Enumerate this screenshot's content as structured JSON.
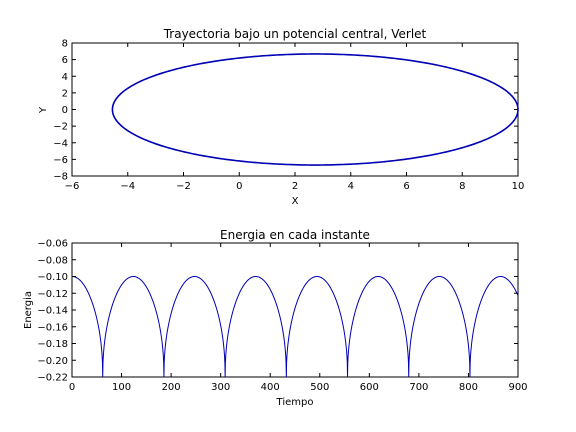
{
  "chart_data": [
    {
      "type": "line",
      "title": "Trayectoria bajo un potencial central, Verlet",
      "xlabel": "X",
      "ylabel": "Y",
      "xlim": [
        -6,
        10
      ],
      "ylim": [
        -8,
        8
      ],
      "xticks": [
        -6,
        -4,
        -2,
        0,
        2,
        4,
        6,
        8,
        10
      ],
      "yticks": [
        -8,
        -6,
        -4,
        -2,
        0,
        2,
        4,
        6,
        8
      ],
      "xtick_labels": [
        "−6",
        "−4",
        "−2",
        "0",
        "2",
        "4",
        "6",
        "8",
        "10"
      ],
      "ytick_labels": [
        "−8",
        "−6",
        "−4",
        "−2",
        "0",
        "2",
        "4",
        "6",
        "8"
      ],
      "grid": false,
      "series": [
        {
          "kind": "ellipse",
          "color": "#0000b4",
          "x": [
            10.0,
            9.83,
            9.34,
            8.53,
            7.45,
            6.12,
            4.6,
            2.97,
            1.26,
            -0.43,
            -1.92,
            -3.23,
            -4.12,
            -4.55,
            -4.55,
            -4.12,
            -3.23,
            -1.92,
            -0.43,
            1.26,
            2.97,
            4.6,
            6.12,
            7.45,
            8.53,
            9.34,
            9.83,
            10.0
          ],
          "y": [
            0.0,
            1.16,
            2.28,
            3.34,
            4.3,
            5.14,
            5.83,
            6.35,
            6.68,
            6.68,
            6.35,
            5.6,
            4.3,
            2.28,
            -2.28,
            -4.3,
            -5.6,
            -6.35,
            -6.68,
            -6.68,
            -6.35,
            -5.83,
            -5.14,
            -4.3,
            -3.34,
            -2.28,
            -1.16,
            0.0
          ]
        }
      ]
    },
    {
      "type": "line",
      "title": "Energia en cada instante",
      "xlabel": "Tiempo",
      "ylabel": "Energia",
      "xlim": [
        0,
        900
      ],
      "ylim": [
        -0.22,
        -0.06
      ],
      "xticks": [
        0,
        100,
        200,
        300,
        400,
        500,
        600,
        700,
        800,
        900
      ],
      "yticks": [
        -0.22,
        -0.2,
        -0.18,
        -0.16,
        -0.14,
        -0.12,
        -0.1,
        -0.08,
        -0.06
      ],
      "xtick_labels": [
        "0",
        "100",
        "200",
        "300",
        "400",
        "500",
        "600",
        "700",
        "800",
        "900"
      ],
      "ytick_labels": [
        "−0.22",
        "−0.20",
        "−0.18",
        "−0.16",
        "−0.14",
        "−0.12",
        "−0.10",
        "−0.08",
        "−0.06"
      ],
      "grid": false,
      "series": [
        {
          "kind": "periodic",
          "color": "#0000b4",
          "period": 123.5,
          "first_minimum_at": 62,
          "maximum": -0.1,
          "minimum": -0.22,
          "minima_at": [
            62,
            185,
            309,
            432,
            556,
            679,
            803
          ],
          "maxima_at": [
            0,
            124,
            247,
            371,
            494,
            618,
            741,
            865
          ]
        }
      ]
    }
  ]
}
